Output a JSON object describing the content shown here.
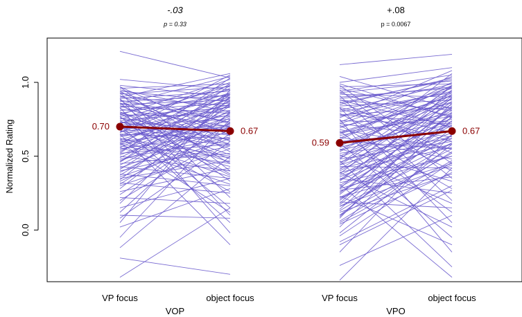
{
  "chart_data": {
    "type": "line",
    "ylabel": "Normalized Rating",
    "ylim": [
      -0.35,
      1.3
    ],
    "yticks": [
      "0.0",
      "0.5",
      "1.0"
    ],
    "ytick_values": [
      0.0,
      0.5,
      1.0
    ],
    "grid": false,
    "panels": [
      {
        "group_label": "VOP",
        "x": [
          "VP focus",
          "object focus"
        ],
        "diff_label": "-.03",
        "p_label": "p = 0.33",
        "diff_italic": true,
        "mean": {
          "values": [
            0.7,
            0.67
          ],
          "labels": [
            "0.70",
            "0.67"
          ]
        },
        "subject_lines": [
          [
            1.21,
            1.03
          ],
          [
            1.02,
            0.95
          ],
          [
            0.98,
            0.9
          ],
          [
            0.96,
            0.99
          ],
          [
            0.95,
            0.8
          ],
          [
            0.94,
            0.87
          ],
          [
            0.93,
            0.72
          ],
          [
            0.92,
            0.97
          ],
          [
            0.91,
            0.6
          ],
          [
            0.9,
            0.84
          ],
          [
            0.89,
            0.94
          ],
          [
            0.88,
            0.73
          ],
          [
            0.87,
            0.91
          ],
          [
            0.86,
            0.66
          ],
          [
            0.85,
            0.88
          ],
          [
            0.84,
            0.79
          ],
          [
            0.83,
            0.95
          ],
          [
            0.82,
            0.7
          ],
          [
            0.81,
            0.86
          ],
          [
            0.8,
            0.55
          ],
          [
            0.79,
            0.92
          ],
          [
            0.78,
            0.77
          ],
          [
            0.77,
            0.83
          ],
          [
            0.76,
            0.64
          ],
          [
            0.75,
            0.98
          ],
          [
            0.74,
            0.81
          ],
          [
            0.73,
            0.68
          ],
          [
            0.72,
            0.9
          ],
          [
            0.71,
            0.75
          ],
          [
            0.7,
            0.58
          ],
          [
            0.69,
            0.93
          ],
          [
            0.68,
            0.85
          ],
          [
            0.67,
            0.71
          ],
          [
            0.66,
            0.96
          ],
          [
            0.65,
            0.62
          ],
          [
            0.64,
            0.89
          ],
          [
            0.63,
            0.78
          ],
          [
            0.62,
            0.5
          ],
          [
            0.61,
            0.84
          ],
          [
            0.6,
            0.69
          ],
          [
            0.59,
            0.92
          ],
          [
            0.58,
            0.74
          ],
          [
            0.57,
            0.45
          ],
          [
            0.56,
            0.87
          ],
          [
            0.55,
            0.66
          ],
          [
            0.54,
            0.8
          ],
          [
            0.53,
            0.93
          ],
          [
            0.52,
            0.58
          ],
          [
            0.51,
            0.77
          ],
          [
            0.5,
            0.4
          ],
          [
            0.49,
            0.85
          ],
          [
            0.48,
            0.63
          ],
          [
            0.47,
            0.72
          ],
          [
            0.46,
            0.9
          ],
          [
            0.45,
            0.52
          ],
          [
            0.44,
            0.81
          ],
          [
            0.43,
            0.35
          ],
          [
            0.42,
            0.7
          ],
          [
            0.41,
            0.88
          ],
          [
            0.4,
            0.57
          ],
          [
            0.39,
            0.76
          ],
          [
            0.38,
            0.3
          ],
          [
            0.37,
            0.84
          ],
          [
            0.36,
            0.62
          ],
          [
            0.35,
            0.47
          ],
          [
            0.34,
            0.92
          ],
          [
            0.33,
            0.68
          ],
          [
            0.32,
            0.25
          ],
          [
            0.31,
            0.79
          ],
          [
            0.3,
            0.55
          ],
          [
            0.28,
            0.86
          ],
          [
            0.26,
            0.42
          ],
          [
            0.24,
            0.73
          ],
          [
            0.22,
            0.18
          ],
          [
            0.2,
            0.65
          ],
          [
            0.18,
            0.9
          ],
          [
            0.15,
            0.35
          ],
          [
            0.12,
            0.8
          ],
          [
            0.1,
            0.08
          ],
          [
            0.08,
            0.6
          ],
          [
            0.05,
            0.95
          ],
          [
            0.02,
            0.28
          ],
          [
            -0.05,
            0.75
          ],
          [
            -0.12,
            0.5
          ],
          [
            -0.19,
            -0.3
          ],
          [
            -0.32,
            0.15
          ],
          [
            0.97,
            0.4
          ],
          [
            0.93,
            0.22
          ],
          [
            0.89,
            0.1
          ],
          [
            0.86,
            0.33
          ],
          [
            0.83,
            -0.02
          ],
          [
            0.8,
            0.48
          ],
          [
            0.77,
            0.15
          ],
          [
            0.74,
            0.37
          ],
          [
            0.71,
            0.05
          ],
          [
            0.68,
            0.26
          ],
          [
            0.65,
            -0.1
          ],
          [
            0.62,
            0.43
          ],
          [
            0.59,
            0.12
          ],
          [
            0.56,
            0.31
          ],
          [
            0.9,
            1.06
          ],
          [
            0.85,
            1.04
          ],
          [
            0.78,
            1.02
          ],
          [
            0.72,
            1.0
          ],
          [
            0.66,
            1.05
          ],
          [
            0.58,
            0.99
          ],
          [
            0.52,
            1.03
          ],
          [
            0.46,
            0.98
          ],
          [
            0.97,
            0.64
          ],
          [
            0.94,
            0.53
          ],
          [
            0.88,
            0.45
          ],
          [
            0.84,
            0.58
          ],
          [
            0.79,
            0.38
          ],
          [
            0.76,
            0.51
          ],
          [
            0.73,
            0.61
          ],
          [
            0.7,
            0.46
          ],
          [
            0.67,
            0.57
          ],
          [
            0.64,
            0.7
          ],
          [
            0.61,
            0.36
          ],
          [
            0.58,
            0.49
          ]
        ]
      },
      {
        "group_label": "VPO",
        "x": [
          "VP focus",
          "object focus"
        ],
        "diff_label": "+.08",
        "p_label": "p = 0.0067",
        "diff_italic": false,
        "mean": {
          "values": [
            0.59,
            0.67
          ],
          "labels": [
            "0.59",
            "0.67"
          ]
        },
        "subject_lines": [
          [
            1.12,
            1.19
          ],
          [
            1.04,
            0.82
          ],
          [
            1.0,
            1.1
          ],
          [
            0.96,
            0.77
          ],
          [
            0.94,
            1.05
          ],
          [
            0.92,
            0.9
          ],
          [
            0.9,
            0.96
          ],
          [
            0.88,
            0.7
          ],
          [
            0.86,
            1.02
          ],
          [
            0.84,
            0.88
          ],
          [
            0.82,
            0.6
          ],
          [
            0.8,
            0.93
          ],
          [
            0.78,
            0.83
          ],
          [
            0.76,
            1.08
          ],
          [
            0.74,
            0.72
          ],
          [
            0.72,
            0.97
          ],
          [
            0.7,
            0.86
          ],
          [
            0.68,
            0.55
          ],
          [
            0.66,
            0.91
          ],
          [
            0.64,
            0.79
          ],
          [
            0.62,
            1.0
          ],
          [
            0.6,
            0.67
          ],
          [
            0.58,
            0.89
          ],
          [
            0.56,
            0.75
          ],
          [
            0.54,
            0.94
          ],
          [
            0.52,
            0.62
          ],
          [
            0.5,
            0.85
          ],
          [
            0.48,
            1.06
          ],
          [
            0.46,
            0.71
          ],
          [
            0.44,
            0.92
          ],
          [
            0.42,
            0.58
          ],
          [
            0.4,
            0.81
          ],
          [
            0.38,
            0.98
          ],
          [
            0.36,
            0.66
          ],
          [
            0.34,
            0.87
          ],
          [
            0.32,
            0.5
          ],
          [
            0.3,
            0.78
          ],
          [
            0.28,
            0.95
          ],
          [
            0.26,
            0.62
          ],
          [
            0.24,
            0.84
          ],
          [
            0.22,
            0.45
          ],
          [
            0.2,
            0.74
          ],
          [
            0.18,
            0.9
          ],
          [
            0.16,
            0.55
          ],
          [
            0.14,
            0.8
          ],
          [
            0.12,
            0.38
          ],
          [
            0.1,
            0.69
          ],
          [
            0.08,
            0.86
          ],
          [
            0.05,
            0.47
          ],
          [
            0.02,
            0.77
          ],
          [
            -0.02,
            0.58
          ],
          [
            -0.08,
            0.3
          ],
          [
            -0.15,
            0.65
          ],
          [
            -0.24,
            0.1
          ],
          [
            -0.34,
            0.42
          ],
          [
            0.98,
            0.45
          ],
          [
            0.95,
            0.35
          ],
          [
            0.91,
            0.2
          ],
          [
            0.87,
            0.52
          ],
          [
            0.83,
            0.05
          ],
          [
            0.79,
            0.4
          ],
          [
            0.75,
            -0.15
          ],
          [
            0.71,
            0.28
          ],
          [
            0.67,
            0.12
          ],
          [
            0.63,
            0.48
          ],
          [
            0.59,
            -0.05
          ],
          [
            0.55,
            0.33
          ],
          [
            0.51,
            0.18
          ],
          [
            0.47,
            -0.25
          ],
          [
            0.43,
            0.42
          ],
          [
            0.39,
            0.02
          ],
          [
            0.35,
            0.25
          ],
          [
            0.31,
            -0.32
          ],
          [
            0.27,
            0.36
          ],
          [
            0.23,
            -0.1
          ],
          [
            0.19,
            0.15
          ],
          [
            0.97,
            0.99
          ],
          [
            0.93,
            1.01
          ],
          [
            0.89,
            0.97
          ],
          [
            0.85,
            1.03
          ],
          [
            0.81,
            0.99
          ],
          [
            0.77,
            0.94
          ],
          [
            0.73,
            1.04
          ],
          [
            0.69,
            0.96
          ],
          [
            0.65,
            0.91
          ],
          [
            0.61,
            0.98
          ],
          [
            0.57,
            0.87
          ],
          [
            0.53,
            0.93
          ],
          [
            0.49,
            0.82
          ],
          [
            0.45,
            0.97
          ],
          [
            0.41,
            0.89
          ],
          [
            0.37,
            0.76
          ],
          [
            0.33,
            0.91
          ],
          [
            0.29,
            0.71
          ],
          [
            0.25,
            0.83
          ],
          [
            0.21,
            0.64
          ],
          [
            0.17,
            0.79
          ],
          [
            0.13,
            0.59
          ],
          [
            0.09,
            0.74
          ],
          [
            0.06,
            0.53
          ],
          [
            0.99,
            0.76
          ],
          [
            0.93,
            0.69
          ],
          [
            0.88,
            0.81
          ],
          [
            0.83,
            0.66
          ],
          [
            0.78,
            0.73
          ],
          [
            0.72,
            0.63
          ],
          [
            0.66,
            0.77
          ],
          [
            0.6,
            0.55
          ],
          [
            0.54,
            0.72
          ],
          [
            0.48,
            0.6
          ],
          [
            0.44,
            0.68
          ],
          [
            0.39,
            0.56
          ],
          [
            0.34,
            0.64
          ],
          [
            0.28,
            0.5
          ],
          [
            0.22,
            0.59
          ],
          [
            0.16,
            0.44
          ],
          [
            0.1,
            0.52
          ],
          [
            0.04,
            0.39
          ],
          [
            -0.04,
            0.46
          ],
          [
            -0.1,
            0.27
          ]
        ]
      }
    ]
  },
  "colors": {
    "subject_line": "#6a5acd",
    "mean": "#8b0000",
    "axis": "#000000"
  }
}
